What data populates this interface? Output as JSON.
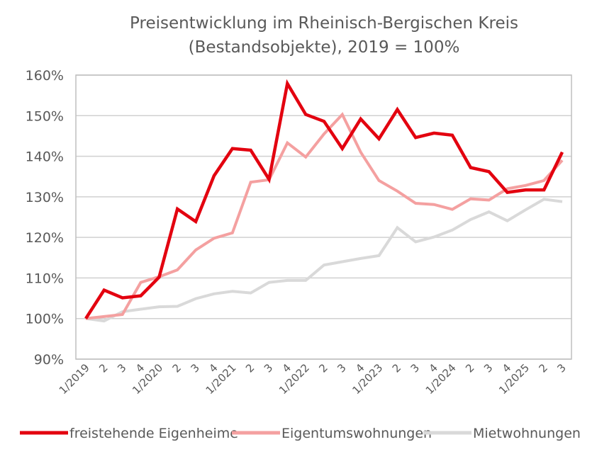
{
  "chart_data": {
    "type": "line",
    "title": "Preisentwicklung im Rheinisch-Bergischen Kreis",
    "subtitle": "(Bestandsobjekte), 2019 = 100%",
    "xlabel": "",
    "ylabel": "",
    "ylim": [
      90,
      160
    ],
    "y_ticks": [
      "90%",
      "100%",
      "110%",
      "120%",
      "130%",
      "140%",
      "150%",
      "160%"
    ],
    "y_tick_values": [
      90,
      100,
      110,
      120,
      130,
      140,
      150,
      160
    ],
    "grid": true,
    "legend_position": "bottom",
    "categories": [
      "1/2019",
      "2",
      "3",
      "4",
      "1/2020",
      "2",
      "3",
      "4",
      "1/2021",
      "2",
      "3",
      "4",
      "1/2022",
      "2",
      "3",
      "4",
      "1/2023",
      "2",
      "3",
      "4",
      "1/2024",
      "2",
      "3",
      "4",
      "1/2025",
      "2",
      "3"
    ],
    "series": [
      {
        "name": "freistehende Eigenheime",
        "color": "#e3000f",
        "values": [
          100,
          107,
          105.1,
          105.6,
          110.2,
          127,
          123.9,
          135.2,
          141.9,
          141.5,
          134.3,
          157.9,
          150.3,
          148.6,
          141.9,
          149.2,
          144.3,
          151.5,
          144.6,
          145.7,
          145.2,
          137.2,
          136.2,
          131.1,
          131.7,
          131.7,
          141
        ]
      },
      {
        "name": "Eigentumswohnungen",
        "color": "#f4a0a0",
        "values": [
          100,
          100.5,
          101,
          108.9,
          110.3,
          112,
          116.9,
          119.8,
          121.1,
          133.6,
          134.2,
          143.3,
          139.8,
          145.5,
          150.3,
          141,
          134,
          131.4,
          128.4,
          128.1,
          126.9,
          129.5,
          129.2,
          132,
          132.8,
          134,
          139
        ]
      },
      {
        "name": "Mietwohnungen",
        "color": "#d9d9d9",
        "values": [
          100,
          99.4,
          101.7,
          102.3,
          102.9,
          103,
          104.9,
          106.1,
          106.7,
          106.3,
          108.9,
          109.4,
          109.4,
          113.2,
          114,
          114.8,
          115.5,
          122.4,
          118.9,
          120.1,
          121.8,
          124.4,
          126.3,
          124.1,
          126.8,
          129.4,
          128.8
        ]
      }
    ]
  }
}
